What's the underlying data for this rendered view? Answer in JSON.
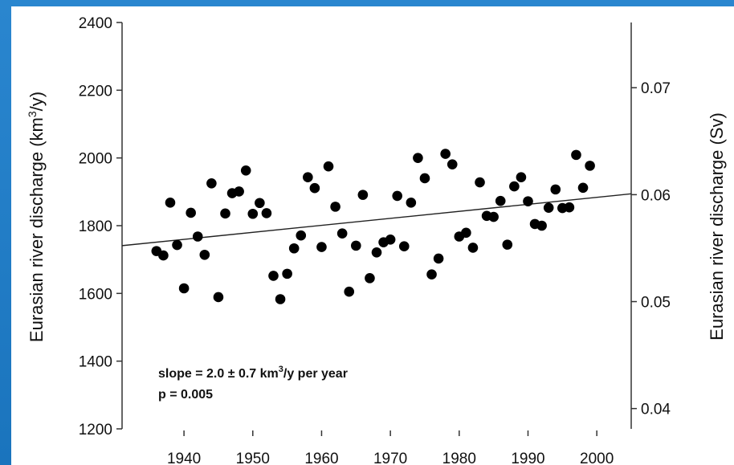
{
  "chart_data": {
    "type": "scatter",
    "xlabel": "",
    "ylabel": "Eurasian river discharge (km³/y)",
    "ylabel_base": "Eurasian river discharge (km",
    "ylabel_sup": "3",
    "ylabel_tail": "/y)",
    "y2label": "Eurasian river discharge (Sv)",
    "xlim": [
      1931,
      2005
    ],
    "ylim": [
      1200,
      2400
    ],
    "y2lim": [
      0.0381,
      0.0761
    ],
    "xticks": [
      1940,
      1950,
      1960,
      1970,
      1980,
      1990,
      2000
    ],
    "yticks": [
      1200,
      1400,
      1600,
      1800,
      2000,
      2200,
      2400
    ],
    "y2ticks": [
      0.04,
      0.05,
      0.06,
      0.07
    ],
    "y2ticklabels": [
      "0.04",
      "0.05",
      "0.06",
      "0.07"
    ],
    "grid": false,
    "points": [
      {
        "x": 1936,
        "y": 1725
      },
      {
        "x": 1937,
        "y": 1712
      },
      {
        "x": 1938,
        "y": 1868
      },
      {
        "x": 1939,
        "y": 1743
      },
      {
        "x": 1940,
        "y": 1615
      },
      {
        "x": 1941,
        "y": 1838
      },
      {
        "x": 1942,
        "y": 1768
      },
      {
        "x": 1943,
        "y": 1714
      },
      {
        "x": 1944,
        "y": 1925
      },
      {
        "x": 1945,
        "y": 1589
      },
      {
        "x": 1946,
        "y": 1836
      },
      {
        "x": 1947,
        "y": 1896
      },
      {
        "x": 1948,
        "y": 1901
      },
      {
        "x": 1949,
        "y": 1963
      },
      {
        "x": 1950,
        "y": 1835
      },
      {
        "x": 1951,
        "y": 1867
      },
      {
        "x": 1952,
        "y": 1837
      },
      {
        "x": 1953,
        "y": 1652
      },
      {
        "x": 1954,
        "y": 1583
      },
      {
        "x": 1955,
        "y": 1658
      },
      {
        "x": 1956,
        "y": 1733
      },
      {
        "x": 1957,
        "y": 1771
      },
      {
        "x": 1958,
        "y": 1943
      },
      {
        "x": 1959,
        "y": 1911
      },
      {
        "x": 1960,
        "y": 1737
      },
      {
        "x": 1961,
        "y": 1975
      },
      {
        "x": 1962,
        "y": 1856
      },
      {
        "x": 1963,
        "y": 1777
      },
      {
        "x": 1964,
        "y": 1605
      },
      {
        "x": 1965,
        "y": 1741
      },
      {
        "x": 1966,
        "y": 1891
      },
      {
        "x": 1967,
        "y": 1645
      },
      {
        "x": 1968,
        "y": 1721
      },
      {
        "x": 1969,
        "y": 1751
      },
      {
        "x": 1970,
        "y": 1759
      },
      {
        "x": 1971,
        "y": 1888
      },
      {
        "x": 1972,
        "y": 1739
      },
      {
        "x": 1973,
        "y": 1868
      },
      {
        "x": 1974,
        "y": 2000
      },
      {
        "x": 1975,
        "y": 1940
      },
      {
        "x": 1976,
        "y": 1656
      },
      {
        "x": 1977,
        "y": 1703
      },
      {
        "x": 1978,
        "y": 2012
      },
      {
        "x": 1979,
        "y": 1981
      },
      {
        "x": 1980,
        "y": 1768
      },
      {
        "x": 1981,
        "y": 1779
      },
      {
        "x": 1982,
        "y": 1735
      },
      {
        "x": 1983,
        "y": 1928
      },
      {
        "x": 1984,
        "y": 1829
      },
      {
        "x": 1985,
        "y": 1826
      },
      {
        "x": 1986,
        "y": 1873
      },
      {
        "x": 1987,
        "y": 1744
      },
      {
        "x": 1988,
        "y": 1916
      },
      {
        "x": 1989,
        "y": 1943
      },
      {
        "x": 1990,
        "y": 1872
      },
      {
        "x": 1991,
        "y": 1805
      },
      {
        "x": 1992,
        "y": 1800
      },
      {
        "x": 1993,
        "y": 1853
      },
      {
        "x": 1994,
        "y": 1907
      },
      {
        "x": 1995,
        "y": 1852
      },
      {
        "x": 1996,
        "y": 1854
      },
      {
        "x": 1997,
        "y": 2009
      },
      {
        "x": 1998,
        "y": 1912
      },
      {
        "x": 1999,
        "y": 1977
      }
    ],
    "trend_line": {
      "x": [
        1931,
        2005
      ],
      "y": [
        1741,
        1894
      ]
    },
    "annotations": {
      "slope_prefix": "slope = 2.0 ± 0.7 km",
      "slope_sup": "3",
      "slope_suffix": "/y per year",
      "p_value": "p = 0.005"
    },
    "colors": {
      "points": "#000000",
      "line": "#222222",
      "background": "#ffffff",
      "frame": "#1a78c2"
    }
  }
}
